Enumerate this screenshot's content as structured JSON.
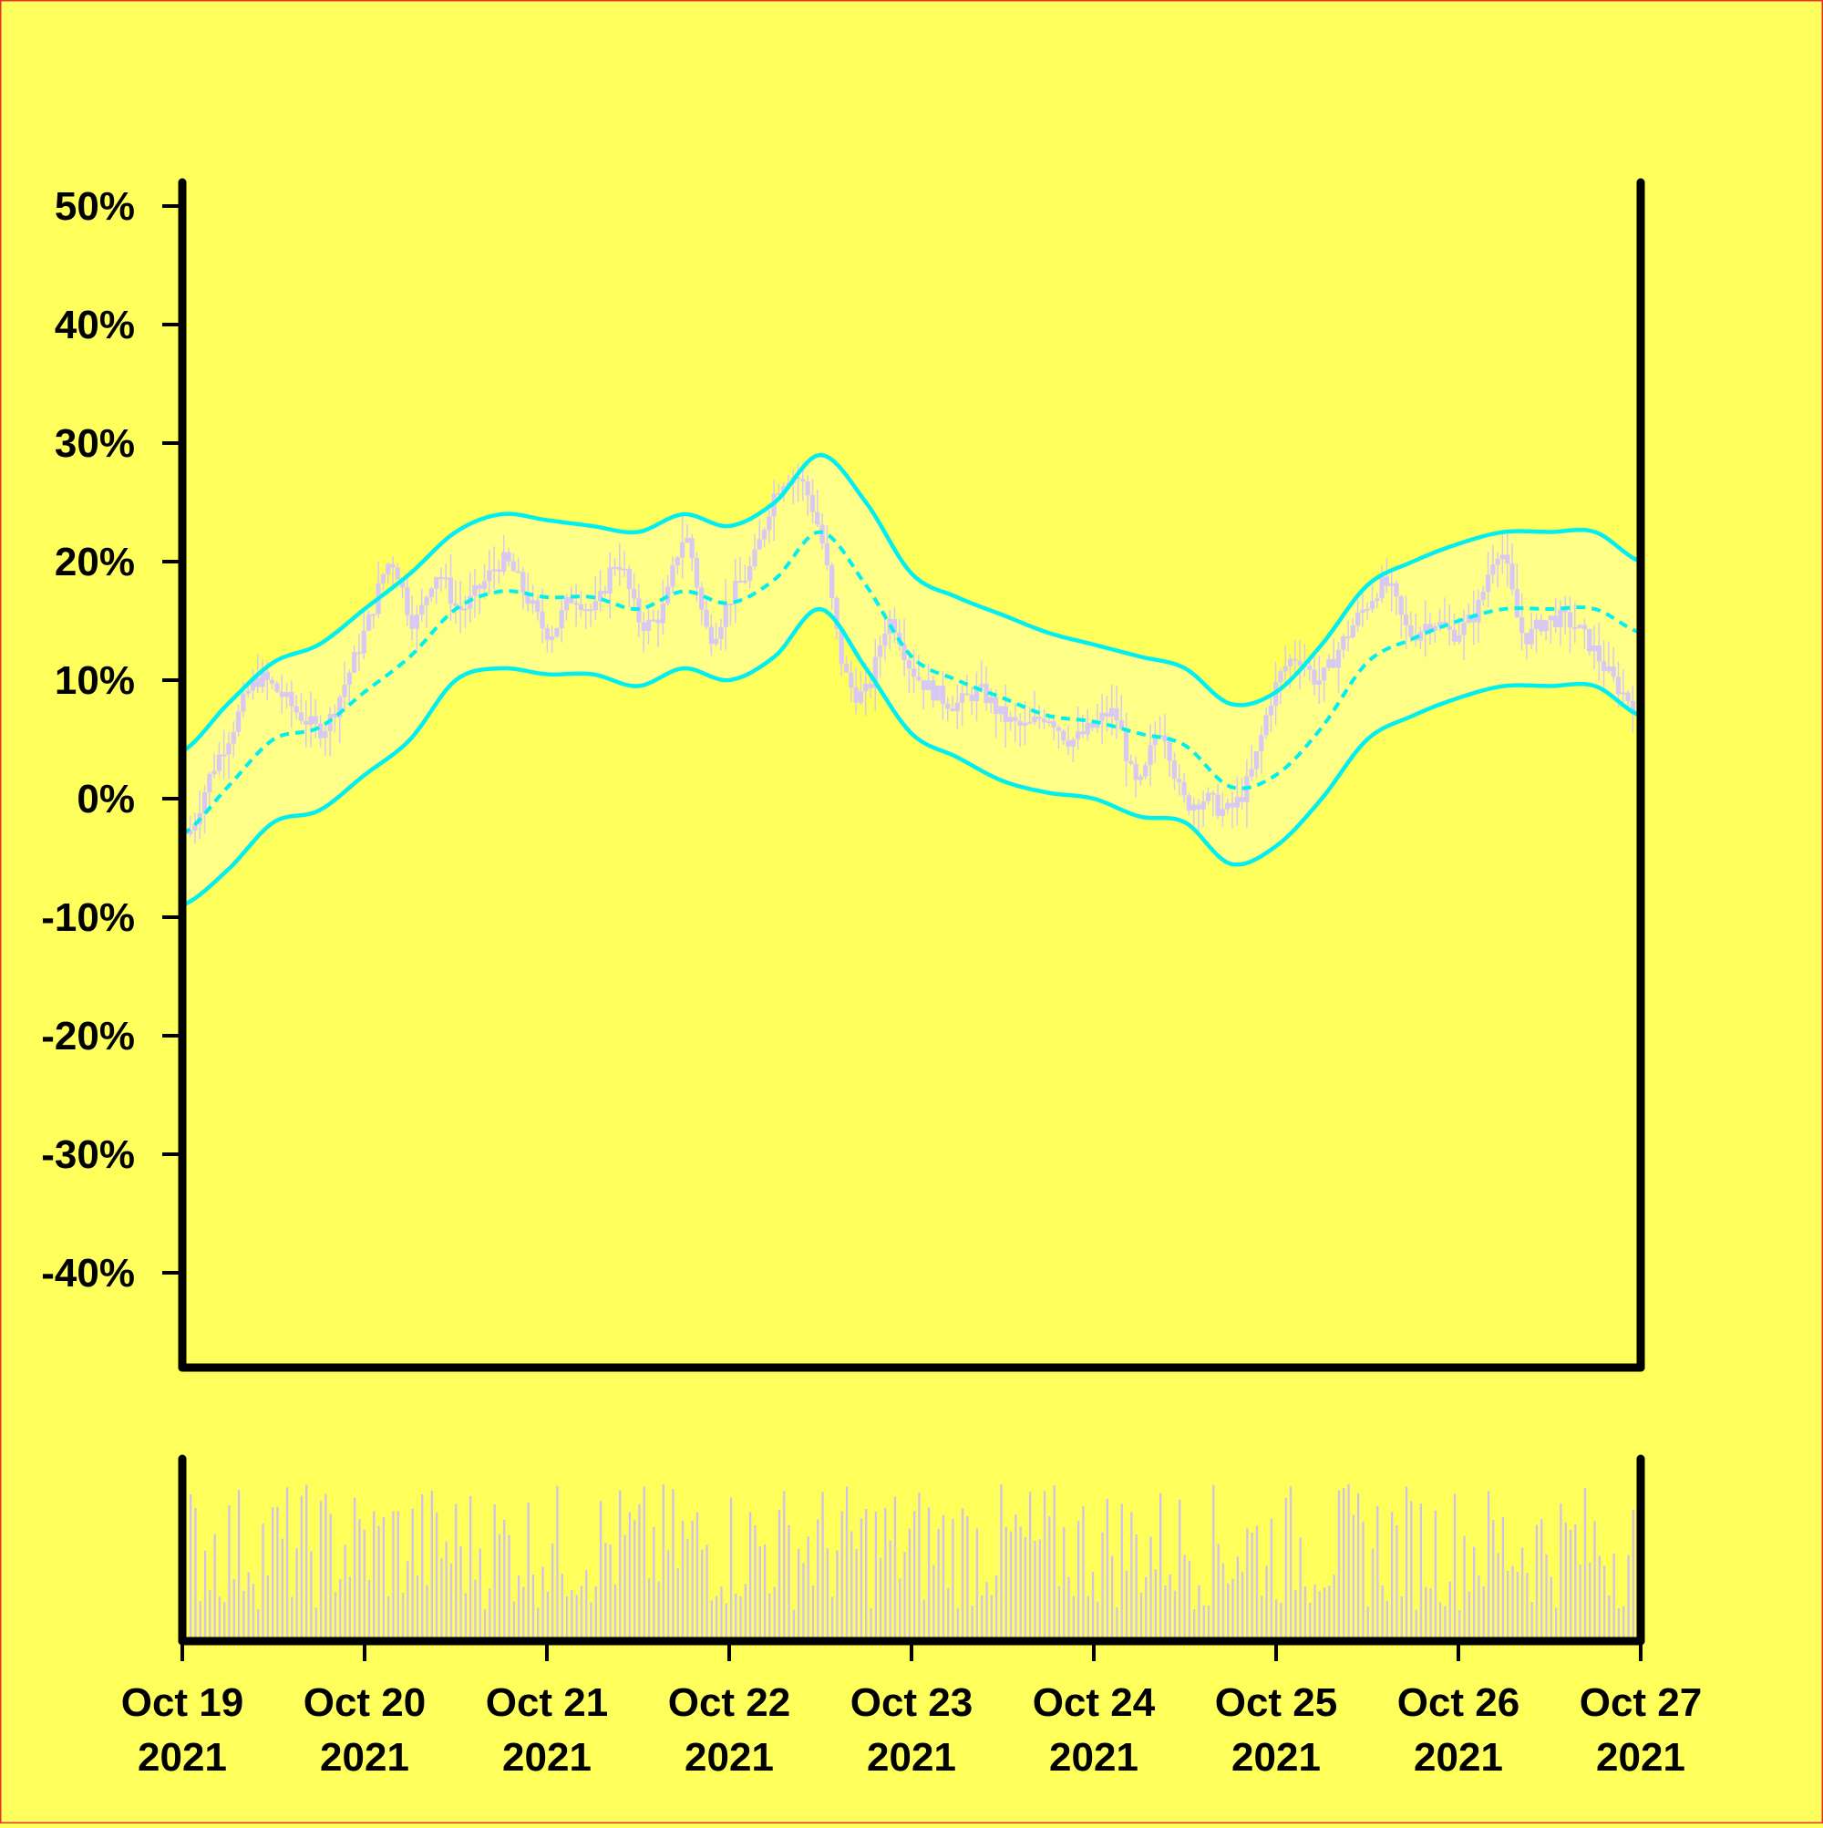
{
  "chart_data": {
    "type": "candlestick",
    "title": "",
    "xlabel": "",
    "ylabel": "",
    "ylim": [
      -48,
      52
    ],
    "y_ticks": [
      {
        "value": 50,
        "label": "50%"
      },
      {
        "value": 40,
        "label": "40%"
      },
      {
        "value": 30,
        "label": "30%"
      },
      {
        "value": 20,
        "label": "20%"
      },
      {
        "value": 10,
        "label": "10%"
      },
      {
        "value": 0,
        "label": "0%"
      },
      {
        "value": -10,
        "label": "-10%"
      },
      {
        "value": -20,
        "label": "-20%"
      },
      {
        "value": -30,
        "label": "-30%"
      },
      {
        "value": -40,
        "label": "-40%"
      }
    ],
    "x_range": [
      "2021-10-19",
      "2021-10-27"
    ],
    "x_ticks": [
      {
        "date": "2021-10-19",
        "line1": "Oct 19",
        "line2": "2021"
      },
      {
        "date": "2021-10-20",
        "line1": "Oct 20",
        "line2": "2021"
      },
      {
        "date": "2021-10-21",
        "line1": "Oct 21",
        "line2": "2021"
      },
      {
        "date": "2021-10-22",
        "line1": "Oct 22",
        "line2": "2021"
      },
      {
        "date": "2021-10-23",
        "line1": "Oct 23",
        "line2": "2021"
      },
      {
        "date": "2021-10-24",
        "line1": "Oct 24",
        "line2": "2021"
      },
      {
        "date": "2021-10-25",
        "line1": "Oct 25",
        "line2": "2021"
      },
      {
        "date": "2021-10-26",
        "line1": "Oct 26",
        "line2": "2021"
      },
      {
        "date": "2021-10-27",
        "line1": "Oct 27",
        "line2": "2021"
      }
    ],
    "price_path": [
      [
        "2021-10-19 00:00",
        -3
      ],
      [
        "2021-10-19 03:00",
        2
      ],
      [
        "2021-10-19 06:00",
        6
      ],
      [
        "2021-10-19 09:00",
        10
      ],
      [
        "2021-10-19 12:00",
        9
      ],
      [
        "2021-10-19 15:00",
        7
      ],
      [
        "2021-10-19 18:00",
        6
      ],
      [
        "2021-10-19 21:00",
        10
      ],
      [
        "2021-10-20 00:00",
        15
      ],
      [
        "2021-10-20 03:00",
        20
      ],
      [
        "2021-10-20 06:00",
        15
      ],
      [
        "2021-10-20 09:00",
        19
      ],
      [
        "2021-10-20 12:00",
        16
      ],
      [
        "2021-10-20 15:00",
        18
      ],
      [
        "2021-10-20 18:00",
        20
      ],
      [
        "2021-10-20 21:00",
        17
      ],
      [
        "2021-10-21 00:00",
        14
      ],
      [
        "2021-10-21 03:00",
        17
      ],
      [
        "2021-10-21 06:00",
        16
      ],
      [
        "2021-10-21 09:00",
        20
      ],
      [
        "2021-10-21 12:00",
        15
      ],
      [
        "2021-10-21 15:00",
        16
      ],
      [
        "2021-10-21 18:00",
        22
      ],
      [
        "2021-10-21 21:00",
        14
      ],
      [
        "2021-10-22 00:00",
        17
      ],
      [
        "2021-10-22 03:00",
        20
      ],
      [
        "2021-10-22 06:00",
        26
      ],
      [
        "2021-10-22 09:00",
        27
      ],
      [
        "2021-10-22 12:00",
        22
      ],
      [
        "2021-10-22 15:00",
        11
      ],
      [
        "2021-10-22 18:00",
        9
      ],
      [
        "2021-10-22 21:00",
        15
      ],
      [
        "2021-10-23 00:00",
        11
      ],
      [
        "2021-10-23 03:00",
        9
      ],
      [
        "2021-10-23 06:00",
        8
      ],
      [
        "2021-10-23 09:00",
        9
      ],
      [
        "2021-10-23 12:00",
        7
      ],
      [
        "2021-10-23 15:00",
        6
      ],
      [
        "2021-10-23 18:00",
        7
      ],
      [
        "2021-10-23 21:00",
        5
      ],
      [
        "2021-10-24 00:00",
        6
      ],
      [
        "2021-10-24 03:00",
        7
      ],
      [
        "2021-10-24 06:00",
        1
      ],
      [
        "2021-10-24 09:00",
        6
      ],
      [
        "2021-10-24 12:00",
        0
      ],
      [
        "2021-10-24 15:00",
        0
      ],
      [
        "2021-10-24 18:00",
        -1
      ],
      [
        "2021-10-24 21:00",
        2
      ],
      [
        "2021-10-25 00:00",
        9
      ],
      [
        "2021-10-25 03:00",
        12
      ],
      [
        "2021-10-25 06:00",
        10
      ],
      [
        "2021-10-25 09:00",
        13
      ],
      [
        "2021-10-25 12:00",
        16
      ],
      [
        "2021-10-25 15:00",
        18
      ],
      [
        "2021-10-25 18:00",
        14
      ],
      [
        "2021-10-25 21:00",
        15
      ],
      [
        "2021-10-26 00:00",
        14
      ],
      [
        "2021-10-26 03:00",
        16
      ],
      [
        "2021-10-26 06:00",
        21
      ],
      [
        "2021-10-26 09:00",
        14
      ],
      [
        "2021-10-26 12:00",
        15
      ],
      [
        "2021-10-26 15:00",
        15
      ],
      [
        "2021-10-26 18:00",
        13
      ],
      [
        "2021-10-26 21:00",
        10
      ],
      [
        "2021-10-27 00:00",
        8
      ]
    ],
    "bollinger_upper": [
      [
        "2021-10-19 00:00",
        4
      ],
      [
        "2021-10-19 06:00",
        8
      ],
      [
        "2021-10-19 12:00",
        11.5
      ],
      [
        "2021-10-19 18:00",
        13
      ],
      [
        "2021-10-20 00:00",
        16
      ],
      [
        "2021-10-20 06:00",
        19
      ],
      [
        "2021-10-20 12:00",
        22.5
      ],
      [
        "2021-10-20 18:00",
        24
      ],
      [
        "2021-10-21 00:00",
        23.5
      ],
      [
        "2021-10-21 06:00",
        23
      ],
      [
        "2021-10-21 12:00",
        22.5
      ],
      [
        "2021-10-21 18:00",
        24
      ],
      [
        "2021-10-22 00:00",
        23
      ],
      [
        "2021-10-22 06:00",
        25
      ],
      [
        "2021-10-22 12:00",
        29
      ],
      [
        "2021-10-22 18:00",
        25
      ],
      [
        "2021-10-23 00:00",
        19
      ],
      [
        "2021-10-23 06:00",
        17
      ],
      [
        "2021-10-23 12:00",
        15.5
      ],
      [
        "2021-10-23 18:00",
        14
      ],
      [
        "2021-10-24 00:00",
        13
      ],
      [
        "2021-10-24 06:00",
        12
      ],
      [
        "2021-10-24 12:00",
        11
      ],
      [
        "2021-10-24 18:00",
        8
      ],
      [
        "2021-10-25 00:00",
        9
      ],
      [
        "2021-10-25 06:00",
        13
      ],
      [
        "2021-10-25 12:00",
        18
      ],
      [
        "2021-10-25 18:00",
        20
      ],
      [
        "2021-10-26 00:00",
        21.5
      ],
      [
        "2021-10-26 06:00",
        22.5
      ],
      [
        "2021-10-26 12:00",
        22.5
      ],
      [
        "2021-10-26 18:00",
        22.5
      ],
      [
        "2021-10-27 00:00",
        20
      ]
    ],
    "bollinger_middle": [
      [
        "2021-10-19 00:00",
        -3
      ],
      [
        "2021-10-19 06:00",
        1
      ],
      [
        "2021-10-19 12:00",
        5
      ],
      [
        "2021-10-19 18:00",
        6
      ],
      [
        "2021-10-20 00:00",
        9
      ],
      [
        "2021-10-20 06:00",
        12
      ],
      [
        "2021-10-20 12:00",
        16
      ],
      [
        "2021-10-20 18:00",
        17.5
      ],
      [
        "2021-10-21 00:00",
        17
      ],
      [
        "2021-10-21 06:00",
        17
      ],
      [
        "2021-10-21 12:00",
        16
      ],
      [
        "2021-10-21 18:00",
        17.5
      ],
      [
        "2021-10-22 00:00",
        16.5
      ],
      [
        "2021-10-22 06:00",
        18.5
      ],
      [
        "2021-10-22 12:00",
        22.5
      ],
      [
        "2021-10-22 18:00",
        18
      ],
      [
        "2021-10-23 00:00",
        12
      ],
      [
        "2021-10-23 06:00",
        10
      ],
      [
        "2021-10-23 12:00",
        8.5
      ],
      [
        "2021-10-23 18:00",
        7
      ],
      [
        "2021-10-24 00:00",
        6.5
      ],
      [
        "2021-10-24 06:00",
        5.5
      ],
      [
        "2021-10-24 12:00",
        4.5
      ],
      [
        "2021-10-24 18:00",
        1
      ],
      [
        "2021-10-25 00:00",
        2
      ],
      [
        "2021-10-25 06:00",
        6
      ],
      [
        "2021-10-25 12:00",
        11.5
      ],
      [
        "2021-10-25 18:00",
        13.5
      ],
      [
        "2021-10-26 00:00",
        15
      ],
      [
        "2021-10-26 06:00",
        16
      ],
      [
        "2021-10-26 12:00",
        16
      ],
      [
        "2021-10-26 18:00",
        16
      ],
      [
        "2021-10-27 00:00",
        14
      ]
    ],
    "bollinger_lower": [
      [
        "2021-10-19 00:00",
        -9
      ],
      [
        "2021-10-19 06:00",
        -6
      ],
      [
        "2021-10-19 12:00",
        -2
      ],
      [
        "2021-10-19 18:00",
        -1
      ],
      [
        "2021-10-20 00:00",
        2
      ],
      [
        "2021-10-20 06:00",
        5
      ],
      [
        "2021-10-20 12:00",
        10
      ],
      [
        "2021-10-20 18:00",
        11
      ],
      [
        "2021-10-21 00:00",
        10.5
      ],
      [
        "2021-10-21 06:00",
        10.5
      ],
      [
        "2021-10-21 12:00",
        9.5
      ],
      [
        "2021-10-21 18:00",
        11
      ],
      [
        "2021-10-22 00:00",
        10
      ],
      [
        "2021-10-22 06:00",
        12
      ],
      [
        "2021-10-22 12:00",
        16
      ],
      [
        "2021-10-22 18:00",
        11
      ],
      [
        "2021-10-23 00:00",
        5.5
      ],
      [
        "2021-10-23 06:00",
        3.5
      ],
      [
        "2021-10-23 12:00",
        1.5
      ],
      [
        "2021-10-23 18:00",
        0.5
      ],
      [
        "2021-10-24 00:00",
        0
      ],
      [
        "2021-10-24 06:00",
        -1.5
      ],
      [
        "2021-10-24 12:00",
        -2
      ],
      [
        "2021-10-24 18:00",
        -5.5
      ],
      [
        "2021-10-25 00:00",
        -4
      ],
      [
        "2021-10-25 06:00",
        0
      ],
      [
        "2021-10-25 12:00",
        5
      ],
      [
        "2021-10-25 18:00",
        7
      ],
      [
        "2021-10-26 00:00",
        8.5
      ],
      [
        "2021-10-26 06:00",
        9.5
      ],
      [
        "2021-10-26 12:00",
        9.5
      ],
      [
        "2021-10-26 18:00",
        9.5
      ],
      [
        "2021-10-27 00:00",
        7
      ]
    ],
    "volume_panel": {
      "y_axis_labels": false,
      "bar_count": 300
    },
    "grid": false,
    "legend": "none",
    "colors": {
      "background": "#ffff5c",
      "band_fill": "#ffff88",
      "band_line": "#00f0f0",
      "candle": "#d8c8f4",
      "volume": "#d0c0ec",
      "axis": "#000000",
      "frame": "#e0342c"
    }
  }
}
